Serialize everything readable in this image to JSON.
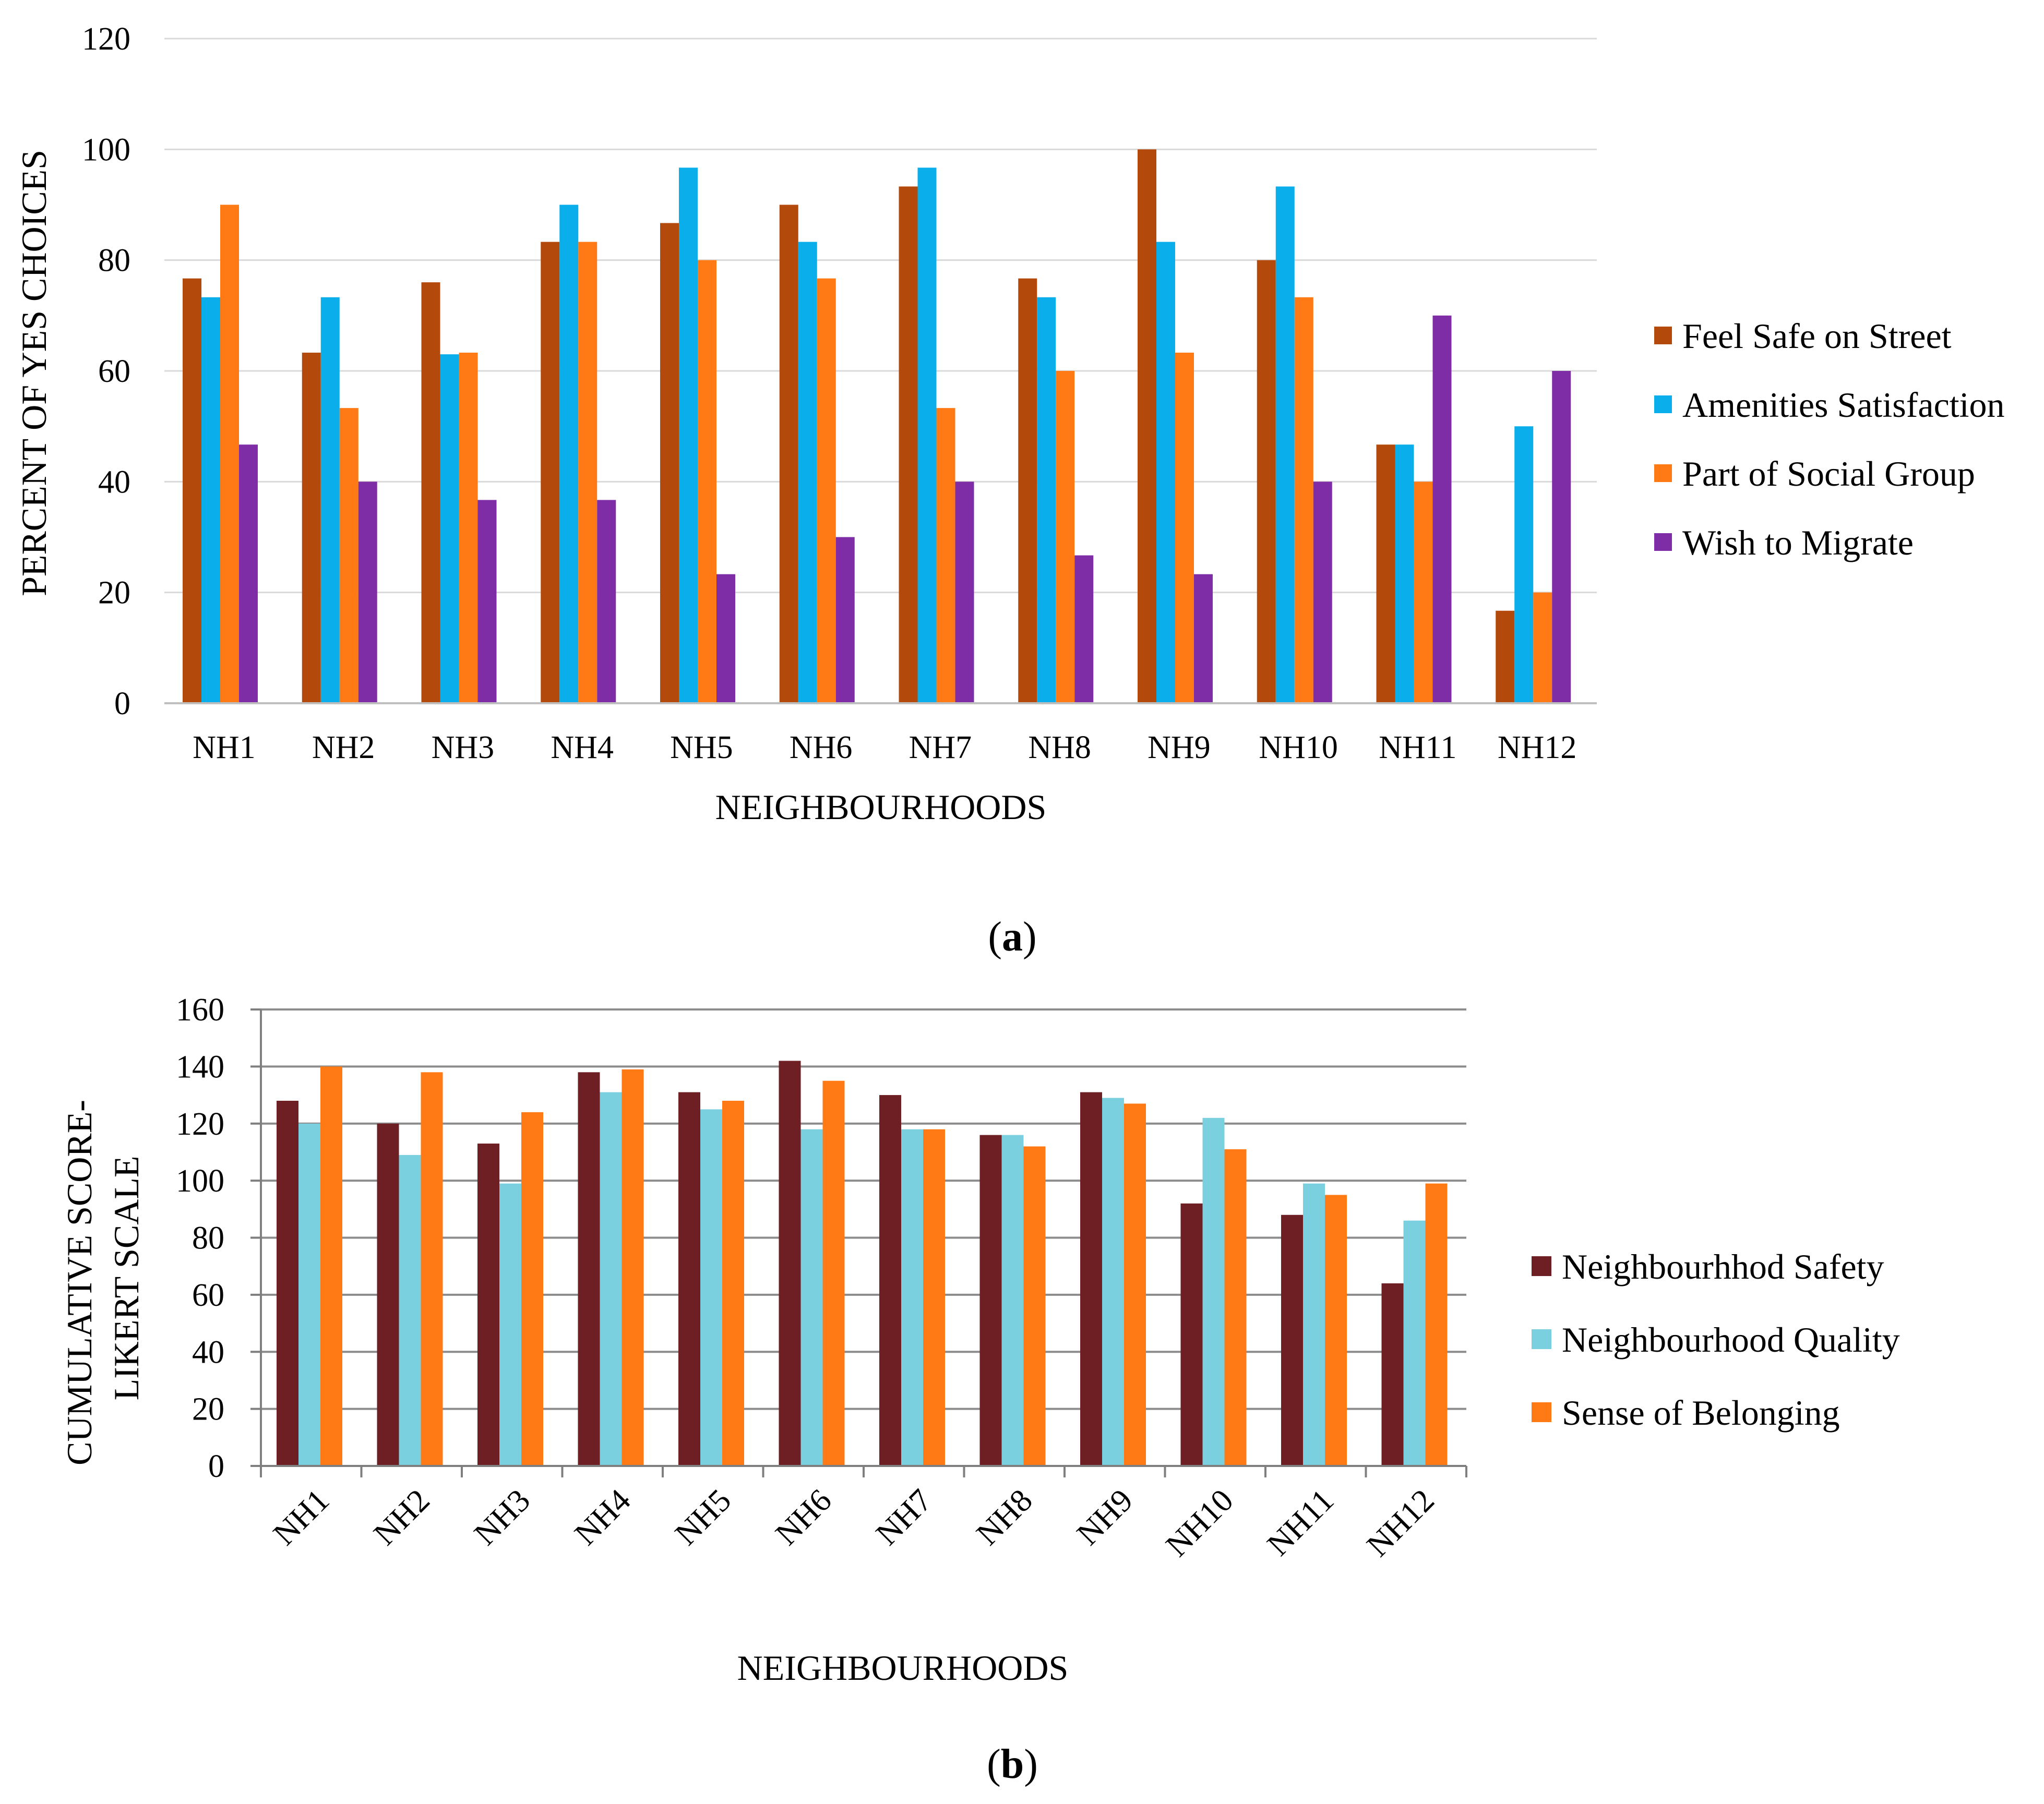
{
  "chart_data": [
    {
      "id": "a",
      "type": "bar",
      "panel_label": [
        "(",
        "a",
        ")"
      ],
      "categories": [
        "NH1",
        "NH2",
        "NH3",
        "NH4",
        "NH5",
        "NH6",
        "NH7",
        "NH8",
        "NH9",
        "NH10",
        "NH11",
        "NH12"
      ],
      "series": [
        {
          "name": "Feel Safe on Street",
          "color": "#B34A0B",
          "values": [
            76.7,
            63.3,
            76,
            83.3,
            86.7,
            90,
            93.3,
            76.7,
            100,
            80,
            46.7,
            16.7
          ]
        },
        {
          "name": "Amenities Satisfaction",
          "color": "#0AAEEA",
          "values": [
            73.3,
            73.3,
            63,
            90,
            96.7,
            83.3,
            96.7,
            73.3,
            83.3,
            93.3,
            46.7,
            50
          ]
        },
        {
          "name": "Part of Social Group",
          "color": "#FF7A14",
          "values": [
            90,
            53.3,
            63.3,
            83.3,
            80,
            76.7,
            53.3,
            60,
            63.3,
            73.3,
            40,
            20
          ]
        },
        {
          "name": "Wish to Migrate",
          "color": "#7E2DA6",
          "values": [
            46.7,
            40,
            36.7,
            36.7,
            23.3,
            30,
            40,
            26.7,
            23.3,
            40,
            70,
            60
          ]
        }
      ],
      "ylim": [
        0,
        120
      ],
      "yticks": [
        "0",
        "20",
        "40",
        "60",
        "80",
        "100",
        "120"
      ],
      "ylabel": "PERCENT OF YES CHOICES",
      "xlabel": "NEIGHBOURHOODS",
      "grid": true,
      "legend_position": "right"
    },
    {
      "id": "b",
      "type": "bar",
      "panel_label": [
        "(",
        "b",
        ")"
      ],
      "categories": [
        "NH1",
        "NH2",
        "NH3",
        "NH4",
        "NH5",
        "NH6",
        "NH7",
        "NH8",
        "NH9",
        "NH10",
        "NH11",
        "NH12"
      ],
      "series": [
        {
          "name": "Neighbourhhod  Safety",
          "color": "#6E1F23",
          "values": [
            128,
            120,
            113,
            138,
            131,
            142,
            130,
            116,
            131,
            92,
            88,
            64
          ]
        },
        {
          "name": "Neighbourhood Quality",
          "color": "#7AD0DE",
          "values": [
            120,
            109,
            99,
            131,
            125,
            118,
            118,
            116,
            129,
            122,
            99,
            86
          ]
        },
        {
          "name": "Sense of Belonging",
          "color": "#FF7A14",
          "values": [
            140,
            138,
            124,
            139,
            128,
            135,
            118,
            112,
            127,
            111,
            95,
            99
          ]
        }
      ],
      "ylim": [
        0,
        160
      ],
      "yticks": [
        "0",
        "20",
        "40",
        "60",
        "80",
        "100",
        "120",
        "140",
        "160"
      ],
      "ylabel_lines": [
        "CUMULATIVE SCORE-",
        "LIKERT SCALE"
      ],
      "xlabel": "NEIGHBOURHOODS",
      "grid": true,
      "legend_position": "right"
    }
  ]
}
